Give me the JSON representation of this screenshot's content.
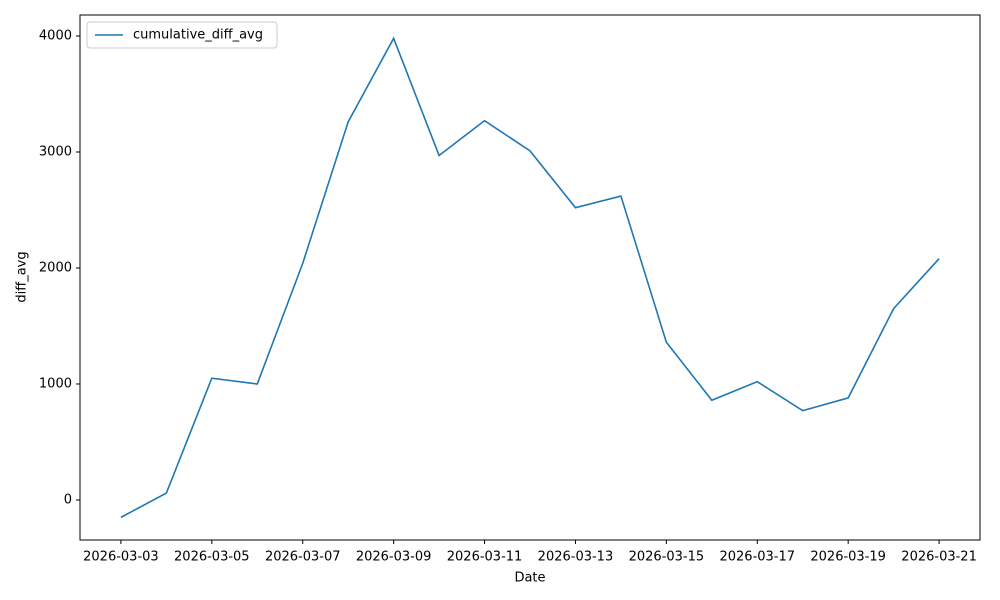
{
  "chart_data": {
    "type": "line",
    "x_label": "Date",
    "y_label": "diff_avg",
    "x": [
      "2026-03-03",
      "2026-03-04",
      "2026-03-05",
      "2026-03-06",
      "2026-03-07",
      "2026-03-08",
      "2026-03-09",
      "2026-03-10",
      "2026-03-11",
      "2026-03-12",
      "2026-03-13",
      "2026-03-14",
      "2026-03-15",
      "2026-03-16",
      "2026-03-17",
      "2026-03-18",
      "2026-03-19",
      "2026-03-20",
      "2026-03-21"
    ],
    "series": [
      {
        "name": "cumulative_diff_avg",
        "color": "#1f77b4",
        "values": [
          -150,
          60,
          1050,
          1000,
          2040,
          3260,
          3980,
          2970,
          3270,
          3010,
          2520,
          2620,
          1360,
          860,
          1020,
          770,
          880,
          1650,
          2080
        ]
      }
    ],
    "xlim": [
      "2026-03-02T02:24:00Z",
      "2026-03-21T21:36:00Z"
    ],
    "xticks": [
      "2026-03-03",
      "2026-03-05",
      "2026-03-07",
      "2026-03-09",
      "2026-03-11",
      "2026-03-13",
      "2026-03-15",
      "2026-03-17",
      "2026-03-19",
      "2026-03-21"
    ],
    "ylim": [
      -345,
      4181
    ],
    "yticks": [
      0,
      1000,
      2000,
      3000,
      4000
    ],
    "legend": "upper left",
    "grid": false
  }
}
